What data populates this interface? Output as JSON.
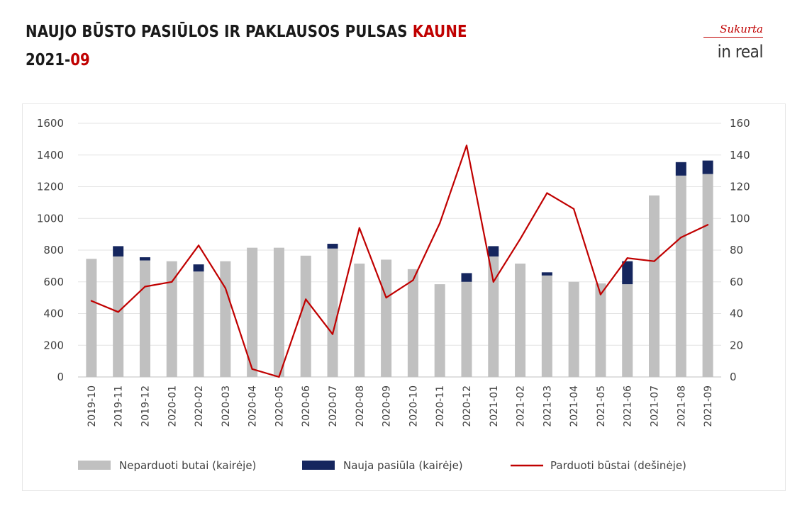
{
  "header": {
    "title_main": "NAUJO BŪSTO PASIŪLOS IR PAKLAUSOS PULSAS ",
    "title_accent": "KAUNE",
    "subtitle_main": "2021-",
    "subtitle_accent": "09"
  },
  "logo": {
    "tagline": "Sukurta",
    "brand": "in real"
  },
  "colors": {
    "unsold": "#c0c0c0",
    "new_offer": "#15265e",
    "sold": "#c00000",
    "accent": "#c00000",
    "grid": "#e3e3e3"
  },
  "chart_data": {
    "type": "bar",
    "stacked": true,
    "categories": [
      "2019-10",
      "2019-11",
      "2019-12",
      "2020-01",
      "2020-02",
      "2020-03",
      "2020-04",
      "2020-05",
      "2020-06",
      "2020-07",
      "2020-08",
      "2020-09",
      "2020-10",
      "2020-11",
      "2020-12",
      "2021-01",
      "2021-02",
      "2021-03",
      "2021-04",
      "2021-05",
      "2021-06",
      "2021-07",
      "2021-08",
      "2021-09"
    ],
    "left_axis": {
      "ylim": [
        0,
        1600
      ],
      "ticks": [
        "0",
        "200",
        "400",
        "600",
        "800",
        "1000",
        "1200",
        "1400",
        "1600"
      ]
    },
    "right_axis": {
      "ylim": [
        0,
        160
      ],
      "ticks": [
        "0",
        "20",
        "40",
        "60",
        "80",
        "100",
        "120",
        "140",
        "160"
      ]
    },
    "grid": true,
    "legend_position": "bottom",
    "series": [
      {
        "name": "Neparduoti butai (kairėje)",
        "kind": "bar",
        "axis": "left",
        "values": [
          745,
          760,
          735,
          730,
          665,
          730,
          815,
          815,
          765,
          810,
          715,
          740,
          680,
          585,
          600,
          760,
          715,
          640,
          600,
          590,
          585,
          1145,
          1270,
          1280
        ]
      },
      {
        "name": "Nauja pasiūla (kairėje)",
        "kind": "bar",
        "axis": "left",
        "values": [
          0,
          65,
          20,
          0,
          45,
          0,
          0,
          0,
          0,
          30,
          0,
          0,
          0,
          0,
          55,
          65,
          0,
          20,
          0,
          0,
          145,
          0,
          85,
          85
        ]
      },
      {
        "name": "Parduoti būstai (dešinėje)",
        "kind": "line",
        "axis": "right",
        "values": [
          48,
          41,
          57,
          60,
          83,
          56,
          5,
          0,
          49,
          27,
          94,
          50,
          61,
          97,
          146,
          60,
          87,
          116,
          106,
          52,
          75,
          73,
          88,
          96
        ]
      }
    ]
  }
}
